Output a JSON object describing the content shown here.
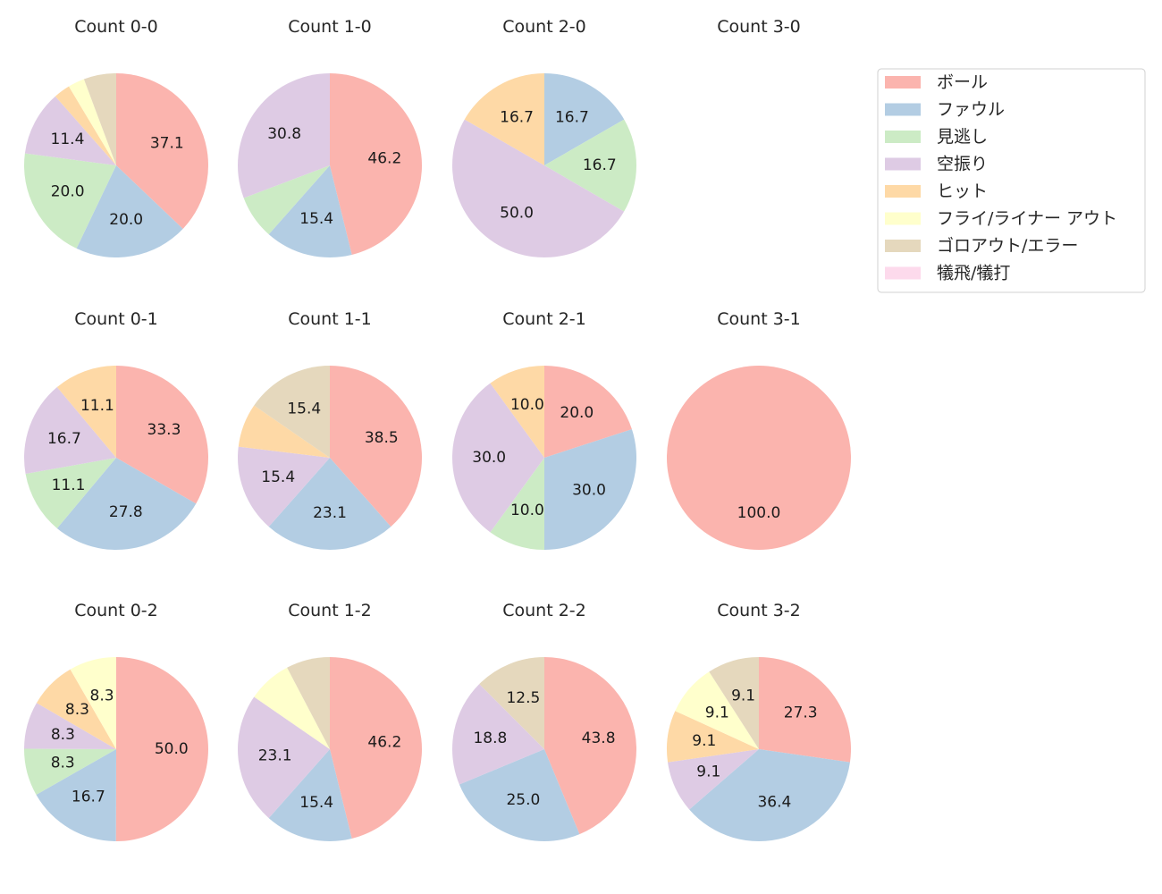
{
  "chart_data": {
    "type": "pie",
    "start_angle_deg": 90,
    "direction": "clockwise",
    "label_threshold_percent": 8,
    "legend": {
      "placement": "top-right",
      "entries": [
        "ボール",
        "ファウル",
        "見逃し",
        "空振り",
        "ヒット",
        "フライ/ライナー アウト",
        "ゴロアウト/エラー",
        "犠飛/犠打"
      ]
    },
    "colors": [
      "#fbb4ae",
      "#b3cde3",
      "#ccebc5",
      "#decbe4",
      "#fed9a6",
      "#ffffcc",
      "#e5d8bd",
      "#fddaec"
    ],
    "pies": [
      {
        "title": "Count 0-0",
        "values": [
          37.1,
          20.0,
          20.0,
          11.4,
          2.9,
          2.9,
          5.7,
          0
        ]
      },
      {
        "title": "Count 1-0",
        "values": [
          46.2,
          15.4,
          7.7,
          30.8,
          0,
          0,
          0,
          0
        ]
      },
      {
        "title": "Count 2-0",
        "values": [
          0,
          16.7,
          16.7,
          50.0,
          16.7,
          0,
          0,
          0
        ]
      },
      {
        "title": "Count 3-0",
        "values": []
      },
      {
        "title": "Count 0-1",
        "values": [
          33.3,
          27.8,
          11.1,
          16.7,
          11.1,
          0,
          0,
          0
        ]
      },
      {
        "title": "Count 1-1",
        "values": [
          38.5,
          23.1,
          0,
          15.4,
          7.7,
          0,
          15.4,
          0
        ]
      },
      {
        "title": "Count 2-1",
        "values": [
          20.0,
          30.0,
          10.0,
          30.0,
          10.0,
          0,
          0,
          0
        ]
      },
      {
        "title": "Count 3-1",
        "values": [
          100.0,
          0,
          0,
          0,
          0,
          0,
          0,
          0
        ]
      },
      {
        "title": "Count 0-2",
        "values": [
          50.0,
          16.7,
          8.3,
          8.3,
          8.3,
          8.3,
          0,
          0
        ]
      },
      {
        "title": "Count 1-2",
        "values": [
          46.2,
          15.4,
          0,
          23.1,
          0,
          7.7,
          7.7,
          0
        ]
      },
      {
        "title": "Count 2-2",
        "values": [
          43.8,
          25.0,
          0,
          18.8,
          0,
          0,
          12.5,
          0
        ]
      },
      {
        "title": "Count 3-2",
        "values": [
          27.3,
          36.4,
          0,
          9.1,
          9.1,
          9.1,
          9.1,
          0
        ]
      }
    ]
  }
}
